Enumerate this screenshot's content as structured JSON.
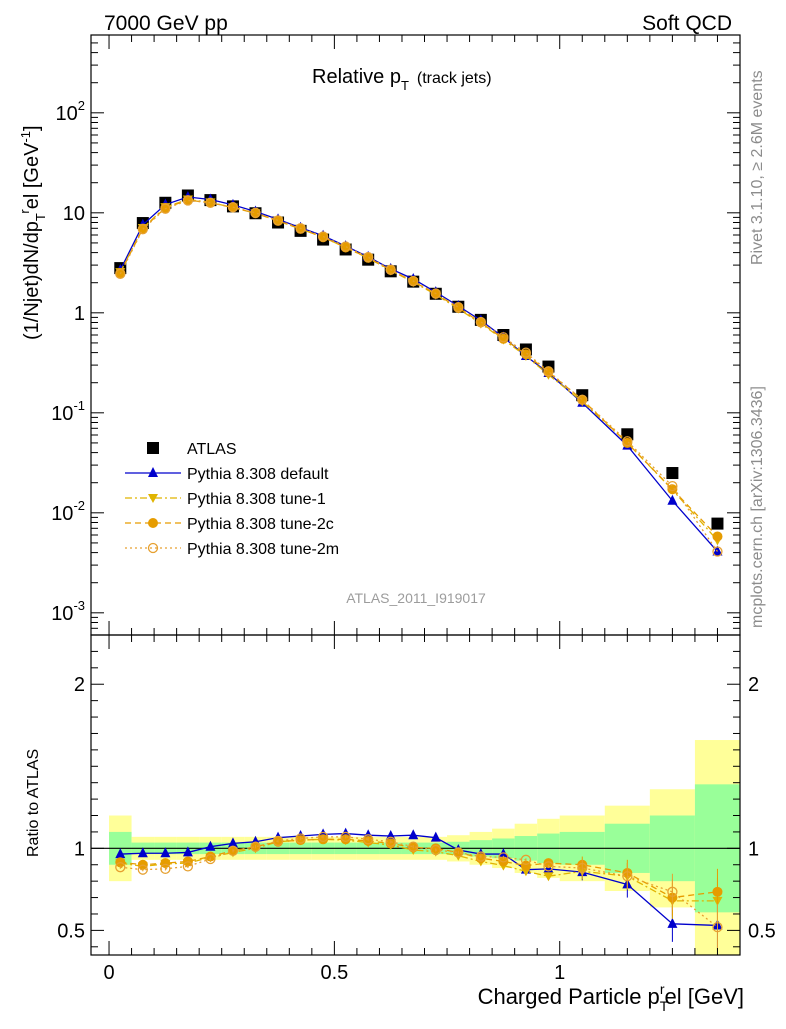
{
  "header": {
    "left": "7000 GeV pp",
    "right": "Soft QCD"
  },
  "side_labels": {
    "rivet": "Rivet 3.1.10, ≥ 2.6M events",
    "mcplots": "mcplots.cern.ch [arXiv:1306.3436]"
  },
  "chart_data": [
    {
      "type": "scatter",
      "title": "Relative pT (track jets)",
      "title_main": "Relative p",
      "title_sub": "T",
      "title_paren": "(track jets)",
      "analysis_label": "ATLAS_2011_I919017",
      "ylabel": "(1/Njet)dN/dpTrel [GeV-1]",
      "ylabel_parts": {
        "a": "(1/Njet)dN/dp",
        "sub": "T",
        "sup": "r",
        "b": "el [GeV",
        "sup2": "-1",
        "c": "]"
      },
      "yscale": "log",
      "ylim": [
        0.0006,
        600
      ],
      "xlim": [
        -0.04,
        1.4
      ],
      "legend_position": "bottom-left",
      "y_tick_labels": [
        {
          "v": 0.001,
          "base": "10",
          "exp": "-3"
        },
        {
          "v": 0.01,
          "base": "10",
          "exp": "-2"
        },
        {
          "v": 0.1,
          "base": "10",
          "exp": "-1"
        },
        {
          "v": 1,
          "base": "1",
          "exp": ""
        },
        {
          "v": 10,
          "base": "10",
          "exp": ""
        },
        {
          "v": 100,
          "base": "10",
          "exp": "2"
        }
      ],
      "x": [
        0.025,
        0.075,
        0.125,
        0.175,
        0.225,
        0.275,
        0.325,
        0.375,
        0.425,
        0.475,
        0.525,
        0.575,
        0.625,
        0.675,
        0.725,
        0.775,
        0.825,
        0.875,
        0.925,
        0.975,
        1.05,
        1.15,
        1.25,
        1.35
      ],
      "series": [
        {
          "name": "ATLAS",
          "color": "#000000",
          "marker": "square",
          "line": "none",
          "values": [
            2.8,
            7.9,
            12.6,
            14.9,
            13.4,
            11.6,
            9.9,
            8.0,
            6.6,
            5.4,
            4.3,
            3.4,
            2.6,
            2.05,
            1.55,
            1.15,
            0.85,
            0.6,
            0.43,
            0.29,
            0.15,
            0.061,
            0.025,
            0.0078
          ]
        },
        {
          "name": "Pythia 8.308 default",
          "color": "#0000cc",
          "marker": "triangle-up",
          "line": "solid",
          "values": [
            2.68,
            7.6,
            12.1,
            14.4,
            13.6,
            12.0,
            10.3,
            8.6,
            7.1,
            5.9,
            4.65,
            3.63,
            2.75,
            2.18,
            1.61,
            1.17,
            0.84,
            0.57,
            0.37,
            0.25,
            0.126,
            0.047,
            0.0132,
            0.0041
          ]
        },
        {
          "name": "Pythia 8.308 tune-1",
          "color": "#e0b400",
          "marker": "triangle-down",
          "line": "dashdot",
          "values": [
            2.55,
            7.05,
            11.4,
            13.6,
            12.7,
            11.3,
            9.9,
            8.3,
            6.9,
            5.7,
            4.5,
            3.52,
            2.65,
            2.03,
            1.52,
            1.1,
            0.78,
            0.54,
            0.37,
            0.24,
            0.13,
            0.05,
            0.017,
            0.0053
          ]
        },
        {
          "name": "Pythia 8.308 tune-2c",
          "color": "#e69c00",
          "marker": "circle",
          "line": "dashed",
          "values": [
            2.5,
            6.95,
            11.2,
            13.4,
            12.6,
            11.3,
            9.9,
            8.3,
            6.9,
            5.7,
            4.5,
            3.55,
            2.68,
            2.06,
            1.55,
            1.12,
            0.8,
            0.55,
            0.385,
            0.255,
            0.135,
            0.05,
            0.0172,
            0.0058
          ]
        },
        {
          "name": "Pythia 8.308 tune-2m",
          "color": "#e6a030",
          "marker": "circle-open",
          "line": "dotted",
          "values": [
            2.45,
            6.85,
            11.0,
            13.3,
            12.6,
            11.4,
            10.0,
            8.4,
            7.0,
            5.8,
            4.6,
            3.6,
            2.7,
            2.08,
            1.56,
            1.14,
            0.81,
            0.57,
            0.4,
            0.26,
            0.135,
            0.052,
            0.0185,
            0.0041
          ]
        }
      ],
      "legend": [
        "ATLAS",
        "Pythia 8.308 default",
        "Pythia 8.308 tune-1",
        "Pythia 8.308 tune-2c",
        "Pythia 8.308 tune-2m"
      ]
    },
    {
      "type": "scatter",
      "ylabel": "Ratio to ATLAS",
      "xlabel": "Charged Particle pTrel [GeV]",
      "xlabel_parts": {
        "a": "Charged Particle p",
        "sub": "T",
        "sup": "r",
        "b": "el [GeV]"
      },
      "ylim": [
        0.35,
        2.3
      ],
      "xlim": [
        -0.04,
        1.4
      ],
      "y_tick_labels": [
        "0.5",
        "1",
        "2"
      ],
      "y_ticks": [
        0.5,
        1,
        2
      ],
      "x_tick_labels": [
        "0",
        "0.5",
        "1"
      ],
      "x_ticks": [
        0,
        0.5,
        1
      ],
      "band_edges": [
        0,
        0.05,
        0.1,
        0.15,
        0.2,
        0.25,
        0.3,
        0.35,
        0.4,
        0.45,
        0.5,
        0.55,
        0.6,
        0.65,
        0.7,
        0.75,
        0.8,
        0.85,
        0.9,
        0.95,
        1.0,
        1.1,
        1.2,
        1.3,
        1.4
      ],
      "band_green_halfwidth": [
        0.1,
        0.035,
        0.035,
        0.035,
        0.035,
        0.035,
        0.035,
        0.035,
        0.035,
        0.035,
        0.035,
        0.035,
        0.035,
        0.035,
        0.035,
        0.04,
        0.05,
        0.06,
        0.075,
        0.09,
        0.1,
        0.15,
        0.2,
        0.39
      ],
      "band_yellow_halfwidth": [
        0.2,
        0.07,
        0.07,
        0.07,
        0.07,
        0.07,
        0.07,
        0.07,
        0.07,
        0.07,
        0.07,
        0.07,
        0.07,
        0.07,
        0.07,
        0.08,
        0.1,
        0.12,
        0.15,
        0.18,
        0.2,
        0.26,
        0.36,
        0.66
      ],
      "series": [
        {
          "name": "Pythia 8.308 default",
          "color": "#0000cc",
          "marker": "triangle-up",
          "line": "solid",
          "values": [
            0.965,
            0.97,
            0.97,
            0.975,
            1.01,
            1.03,
            1.04,
            1.065,
            1.075,
            1.085,
            1.09,
            1.08,
            1.075,
            1.08,
            1.065,
            0.99,
            0.965,
            0.965,
            0.87,
            0.875,
            0.855,
            0.78,
            0.54,
            0.53
          ]
        },
        {
          "name": "Pythia 8.308 tune-1",
          "color": "#e0b400",
          "marker": "triangle-down",
          "line": "dashdot",
          "values": [
            0.91,
            0.89,
            0.905,
            0.91,
            0.945,
            0.975,
            1.0,
            1.04,
            1.05,
            1.055,
            1.05,
            1.035,
            1.02,
            0.99,
            0.98,
            0.955,
            0.92,
            0.895,
            0.86,
            0.83,
            0.86,
            0.83,
            0.68,
            0.68
          ]
        },
        {
          "name": "Pythia 8.308 tune-2c",
          "color": "#e69c00",
          "marker": "circle",
          "line": "dashed",
          "values": [
            0.915,
            0.9,
            0.91,
            0.92,
            0.95,
            0.985,
            1.01,
            1.04,
            1.05,
            1.055,
            1.055,
            1.045,
            1.03,
            1.005,
            1.0,
            0.975,
            0.94,
            0.92,
            0.895,
            0.91,
            0.9,
            0.85,
            0.7,
            0.735
          ]
        },
        {
          "name": "Pythia 8.308 tune-2m",
          "color": "#e6a030",
          "marker": "circle-open",
          "line": "dotted",
          "values": [
            0.885,
            0.87,
            0.875,
            0.89,
            0.935,
            0.985,
            1.01,
            1.045,
            1.06,
            1.07,
            1.07,
            1.055,
            1.04,
            1.01,
            0.99,
            0.975,
            0.95,
            0.945,
            0.93,
            0.89,
            0.88,
            0.83,
            0.735,
            0.52
          ]
        }
      ]
    }
  ]
}
